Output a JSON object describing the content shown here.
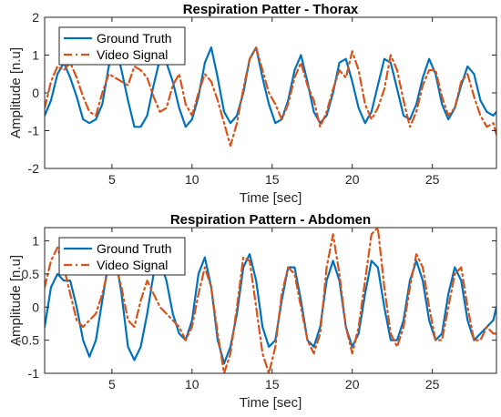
{
  "chart_data": [
    {
      "type": "line",
      "title": "Respiration Patter - Thorax",
      "xlabel": "Time [sec]",
      "ylabel": "Amplitude [n.u]",
      "xlim": [
        0.8,
        29
      ],
      "ylim": [
        -2,
        2
      ],
      "xticks": [
        5,
        10,
        15,
        20,
        25
      ],
      "xtick_labels": [
        "5",
        "10",
        "15",
        "20",
        "25"
      ],
      "yticks": [
        -2,
        -1,
        0,
        1,
        2
      ],
      "ytick_labels": [
        "-2",
        "-1",
        "0",
        "1",
        "2"
      ],
      "grid": false,
      "legend": "top-left",
      "series": [
        {
          "name": "Ground Truth",
          "color": "#0072BD",
          "style": "solid",
          "x": [
            0.8,
            1.2,
            1.6,
            2.0,
            2.4,
            2.8,
            3.2,
            3.6,
            4.0,
            4.4,
            4.8,
            5.2,
            5.6,
            6.0,
            6.4,
            6.8,
            7.2,
            7.6,
            8.0,
            8.4,
            8.8,
            9.2,
            9.6,
            10.0,
            10.4,
            10.8,
            11.2,
            11.6,
            12.0,
            12.4,
            12.8,
            13.2,
            13.6,
            14.0,
            14.4,
            14.8,
            15.2,
            15.6,
            16.0,
            16.4,
            16.8,
            17.2,
            17.6,
            18.0,
            18.4,
            18.8,
            19.2,
            19.6,
            20.0,
            20.4,
            20.8,
            21.2,
            21.6,
            22.0,
            22.4,
            22.8,
            23.2,
            23.6,
            24.0,
            24.4,
            24.8,
            25.2,
            25.6,
            26.0,
            26.4,
            26.8,
            27.2,
            27.6,
            28.0,
            28.4,
            28.8,
            29.0
          ],
          "y": [
            -0.6,
            -0.2,
            0.5,
            0.8,
            0.4,
            -0.1,
            -0.7,
            -0.8,
            -0.7,
            -0.3,
            0.7,
            1.3,
            0.6,
            -0.2,
            -0.9,
            -0.9,
            -0.6,
            0.2,
            0.9,
            0.8,
            0.3,
            -0.4,
            -0.9,
            -0.7,
            -0.1,
            0.8,
            1.2,
            0.4,
            -0.5,
            -0.8,
            -0.6,
            0.0,
            0.9,
            1.2,
            0.4,
            -0.3,
            -0.8,
            -0.7,
            -0.2,
            0.6,
            1.0,
            0.3,
            -0.5,
            -0.8,
            -0.6,
            0.0,
            0.8,
            0.9,
            0.3,
            -0.4,
            -0.8,
            -0.5,
            0.2,
            0.9,
            0.8,
            0.1,
            -0.6,
            -0.7,
            -0.3,
            0.4,
            0.9,
            0.5,
            -0.3,
            -0.7,
            -0.4,
            0.2,
            0.7,
            0.5,
            -0.2,
            -0.5,
            -0.6,
            -0.5
          ]
        },
        {
          "name": "Video Signal",
          "color": "#D95319",
          "style": "dashdot",
          "x": [
            0.8,
            1.2,
            1.6,
            2.0,
            2.4,
            2.8,
            3.2,
            3.6,
            4.0,
            4.4,
            4.8,
            5.2,
            5.6,
            6.0,
            6.4,
            6.8,
            7.2,
            7.6,
            8.0,
            8.4,
            8.8,
            9.2,
            9.6,
            10.0,
            10.4,
            10.8,
            11.2,
            11.6,
            12.0,
            12.4,
            12.8,
            13.2,
            13.6,
            14.0,
            14.4,
            14.8,
            15.2,
            15.6,
            16.0,
            16.4,
            16.8,
            17.2,
            17.6,
            18.0,
            18.4,
            18.8,
            19.2,
            19.6,
            20.0,
            20.4,
            20.8,
            21.2,
            21.6,
            22.0,
            22.4,
            22.8,
            23.2,
            23.6,
            24.0,
            24.4,
            24.8,
            25.2,
            25.6,
            26.0,
            26.4,
            26.8,
            27.2,
            27.6,
            28.0,
            28.4,
            28.8,
            29.0
          ],
          "y": [
            -0.4,
            0.3,
            0.7,
            0.6,
            0.8,
            0.4,
            -0.1,
            -0.5,
            -0.6,
            0.0,
            0.5,
            0.4,
            0.3,
            0.2,
            0.7,
            0.6,
            0.4,
            -0.1,
            -0.5,
            -0.4,
            0.2,
            0.5,
            -0.3,
            -0.6,
            0.0,
            0.5,
            0.3,
            -0.2,
            -0.8,
            -1.4,
            -0.8,
            0.1,
            0.9,
            1.2,
            0.6,
            0.0,
            -0.3,
            -0.7,
            -0.3,
            0.4,
            0.8,
            0.2,
            -0.2,
            -0.9,
            -0.5,
            0.1,
            0.6,
            0.4,
            1.1,
            0.6,
            -0.3,
            -0.7,
            -0.4,
            0.1,
            1.0,
            0.6,
            -0.2,
            -0.9,
            -0.5,
            0.2,
            0.6,
            0.6,
            -0.1,
            -0.6,
            -0.4,
            0.3,
            0.5,
            -0.1,
            -0.6,
            -0.9,
            -0.8,
            -1.1
          ]
        }
      ]
    },
    {
      "type": "line",
      "title": "Respiration Pattern - Abdomen",
      "xlabel": "Time [sec]",
      "ylabel": "Amplitude [n.u]",
      "xlim": [
        0.8,
        29
      ],
      "ylim": [
        -1,
        1.2
      ],
      "xticks": [
        5,
        10,
        15,
        20,
        25
      ],
      "xtick_labels": [
        "5",
        "10",
        "15",
        "20",
        "25"
      ],
      "yticks": [
        -1,
        -0.5,
        0,
        0.5,
        1
      ],
      "ytick_labels": [
        "-1",
        "-0.5",
        "0",
        "0.5",
        "1"
      ],
      "grid": false,
      "legend": "top-left",
      "series": [
        {
          "name": "Ground Truth",
          "color": "#0072BD",
          "style": "solid",
          "x": [
            0.8,
            1.2,
            1.6,
            2.0,
            2.4,
            2.8,
            3.2,
            3.6,
            4.0,
            4.4,
            4.8,
            5.2,
            5.6,
            6.0,
            6.4,
            6.8,
            7.2,
            7.6,
            8.0,
            8.4,
            8.8,
            9.2,
            9.6,
            10.0,
            10.4,
            10.8,
            11.2,
            11.6,
            12.0,
            12.4,
            12.8,
            13.2,
            13.6,
            14.0,
            14.4,
            14.8,
            15.2,
            15.6,
            16.0,
            16.4,
            16.8,
            17.2,
            17.6,
            18.0,
            18.4,
            18.8,
            19.2,
            19.6,
            20.0,
            20.4,
            20.8,
            21.2,
            21.6,
            22.0,
            22.4,
            22.8,
            23.2,
            23.6,
            24.0,
            24.4,
            24.8,
            25.2,
            25.6,
            26.0,
            26.4,
            26.8,
            27.2,
            27.6,
            28.0,
            28.4,
            28.8,
            29.0
          ],
          "y": [
            -0.3,
            0.3,
            0.5,
            0.4,
            0.4,
            0.0,
            -0.5,
            -0.75,
            -0.5,
            0.1,
            0.7,
            0.8,
            0.2,
            -0.6,
            -0.8,
            -0.6,
            -0.1,
            0.5,
            0.7,
            0.4,
            -0.1,
            -0.4,
            -0.5,
            -0.2,
            0.5,
            0.75,
            0.3,
            -0.5,
            -0.85,
            -0.6,
            -0.1,
            0.6,
            0.8,
            0.4,
            -0.3,
            -0.6,
            -0.5,
            0.1,
            0.6,
            0.6,
            0.1,
            -0.5,
            -0.6,
            -0.3,
            0.4,
            0.7,
            0.4,
            -0.3,
            -0.6,
            -0.4,
            0.2,
            0.7,
            0.6,
            0.0,
            -0.5,
            -0.5,
            -0.2,
            0.4,
            0.7,
            0.4,
            -0.2,
            -0.5,
            -0.4,
            0.2,
            0.6,
            0.4,
            -0.2,
            -0.5,
            -0.4,
            -0.3,
            -0.2,
            0.0
          ]
        },
        {
          "name": "Video Signal",
          "color": "#D95319",
          "style": "dashdot",
          "x": [
            0.8,
            1.2,
            1.6,
            2.0,
            2.4,
            2.8,
            3.2,
            3.6,
            4.0,
            4.4,
            4.8,
            5.2,
            5.6,
            6.0,
            6.4,
            6.8,
            7.2,
            7.6,
            8.0,
            8.4,
            8.8,
            9.2,
            9.6,
            10.0,
            10.4,
            10.8,
            11.2,
            11.6,
            12.0,
            12.4,
            12.8,
            13.2,
            13.6,
            14.0,
            14.4,
            14.8,
            15.2,
            15.6,
            16.0,
            16.4,
            16.8,
            17.2,
            17.6,
            18.0,
            18.4,
            18.8,
            19.2,
            19.6,
            20.0,
            20.4,
            20.8,
            21.2,
            21.6,
            22.0,
            22.4,
            22.8,
            23.2,
            23.6,
            24.0,
            24.4,
            24.8,
            25.2,
            25.6,
            26.0,
            26.4,
            26.8,
            27.2,
            27.6,
            28.0,
            28.4,
            28.8,
            29.0
          ],
          "y": [
            0.3,
            0.7,
            0.9,
            0.6,
            0.2,
            -0.2,
            -0.3,
            -0.2,
            -0.1,
            0.2,
            0.6,
            0.65,
            0.3,
            -0.2,
            -0.3,
            0.1,
            0.4,
            0.2,
            0.0,
            -0.1,
            -0.2,
            -0.3,
            -0.5,
            -0.3,
            0.2,
            0.6,
            0.3,
            -0.4,
            -1.0,
            -0.7,
            0.0,
            0.75,
            0.7,
            0.0,
            -0.7,
            -1.0,
            -0.6,
            0.2,
            0.6,
            0.5,
            0.0,
            -0.5,
            -0.7,
            -0.4,
            0.6,
            1.1,
            0.5,
            -0.3,
            -0.7,
            -0.3,
            0.4,
            1.1,
            1.2,
            0.3,
            -0.4,
            -0.6,
            -0.3,
            0.3,
            0.8,
            0.6,
            0.0,
            -0.5,
            -0.5,
            0.0,
            0.5,
            0.6,
            0.0,
            -0.5,
            -0.5,
            -0.3,
            -0.4,
            -0.4
          ]
        }
      ]
    }
  ]
}
